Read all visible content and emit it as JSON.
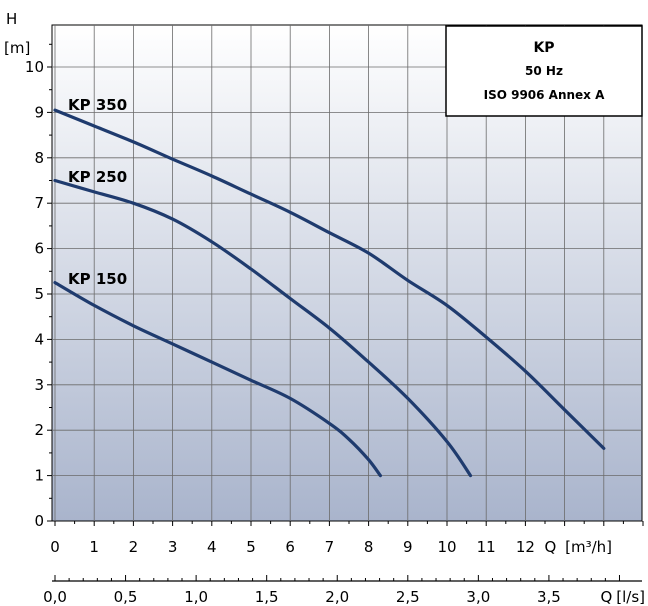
{
  "chart_data": {
    "type": "line",
    "title": "",
    "ylabel": "H",
    "yunit": "[m]",
    "xlabel": "Q",
    "xunit": "[m³/h]",
    "x2label": "Q",
    "x2unit": "[l/s]",
    "xlim": [
      0,
      15
    ],
    "ylim": [
      0,
      11
    ],
    "xticks": [
      "0",
      "1",
      "2",
      "3",
      "4",
      "5",
      "6",
      "7",
      "8",
      "9",
      "10",
      "11",
      "12"
    ],
    "yticks": [
      "0",
      "1",
      "2",
      "3",
      "4",
      "5",
      "6",
      "7",
      "8",
      "9",
      "10"
    ],
    "x2ticks": [
      "0,0",
      "0,5",
      "1,0",
      "1,5",
      "2,0",
      "2,5",
      "3,0",
      "3,5"
    ],
    "grid": true,
    "legend": {
      "placement": "top-right",
      "title": "KP",
      "lines": [
        "50 Hz",
        "ISO 9906 Annex A"
      ]
    },
    "series": [
      {
        "name": "KP 350",
        "color": "#1f3b6e",
        "x": [
          0,
          1,
          2,
          3,
          4,
          5,
          6,
          7,
          8,
          9,
          10,
          11,
          12,
          13,
          14
        ],
        "y": [
          9.05,
          8.7,
          8.35,
          7.97,
          7.6,
          7.2,
          6.8,
          6.35,
          5.9,
          5.3,
          4.75,
          4.05,
          3.3,
          2.45,
          1.6
        ]
      },
      {
        "name": "KP 250",
        "color": "#1f3b6e",
        "x": [
          0,
          1,
          2,
          3,
          4,
          5,
          6,
          7,
          8,
          9,
          10,
          10.6
        ],
        "y": [
          7.5,
          7.25,
          7.0,
          6.65,
          6.15,
          5.55,
          4.9,
          4.25,
          3.5,
          2.7,
          1.75,
          1.0
        ]
      },
      {
        "name": "KP 150",
        "color": "#1f3b6e",
        "x": [
          0,
          1,
          2,
          3,
          4,
          5,
          6,
          7,
          7.5,
          8,
          8.3
        ],
        "y": [
          5.25,
          4.75,
          4.3,
          3.9,
          3.5,
          3.1,
          2.7,
          2.15,
          1.8,
          1.35,
          1.0
        ]
      }
    ]
  }
}
